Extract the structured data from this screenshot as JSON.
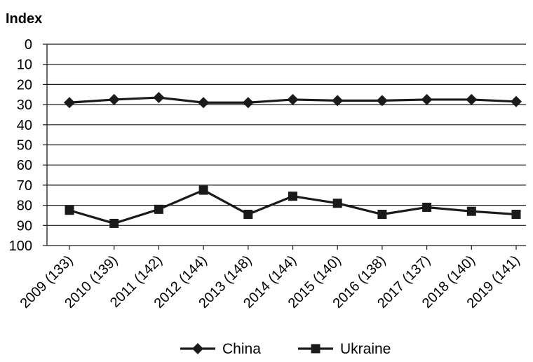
{
  "chart_data": {
    "type": "line",
    "title": "",
    "xlabel": "",
    "ylabel": "Index",
    "ylim": [
      100,
      0
    ],
    "y_ticks": [
      "0",
      "10",
      "20",
      "30",
      "40",
      "50",
      "60",
      "70",
      "80",
      "90",
      "100"
    ],
    "y_axis_inverted": true,
    "grid": "horizontal",
    "legend_position": "bottom",
    "categories": [
      "2009 (133)",
      "2010 (139)",
      "2011 (142)",
      "2012 (144)",
      "2013 (148)",
      "2014 (144)",
      "2015 (140)",
      "2016 (138)",
      "2017 (137)",
      "2018 (140)",
      "2019 (141)"
    ],
    "series": [
      {
        "name": "China",
        "marker": "diamond",
        "color": "#1a1a1a",
        "values": [
          29,
          27.5,
          26.5,
          29,
          29,
          27.5,
          28,
          28,
          27.5,
          27.5,
          28.5
        ]
      },
      {
        "name": "Ukraine",
        "marker": "square",
        "color": "#1a1a1a",
        "values": [
          82.5,
          89,
          82,
          72.5,
          84.5,
          75.5,
          79,
          84.5,
          81,
          83,
          84.5
        ]
      }
    ]
  }
}
